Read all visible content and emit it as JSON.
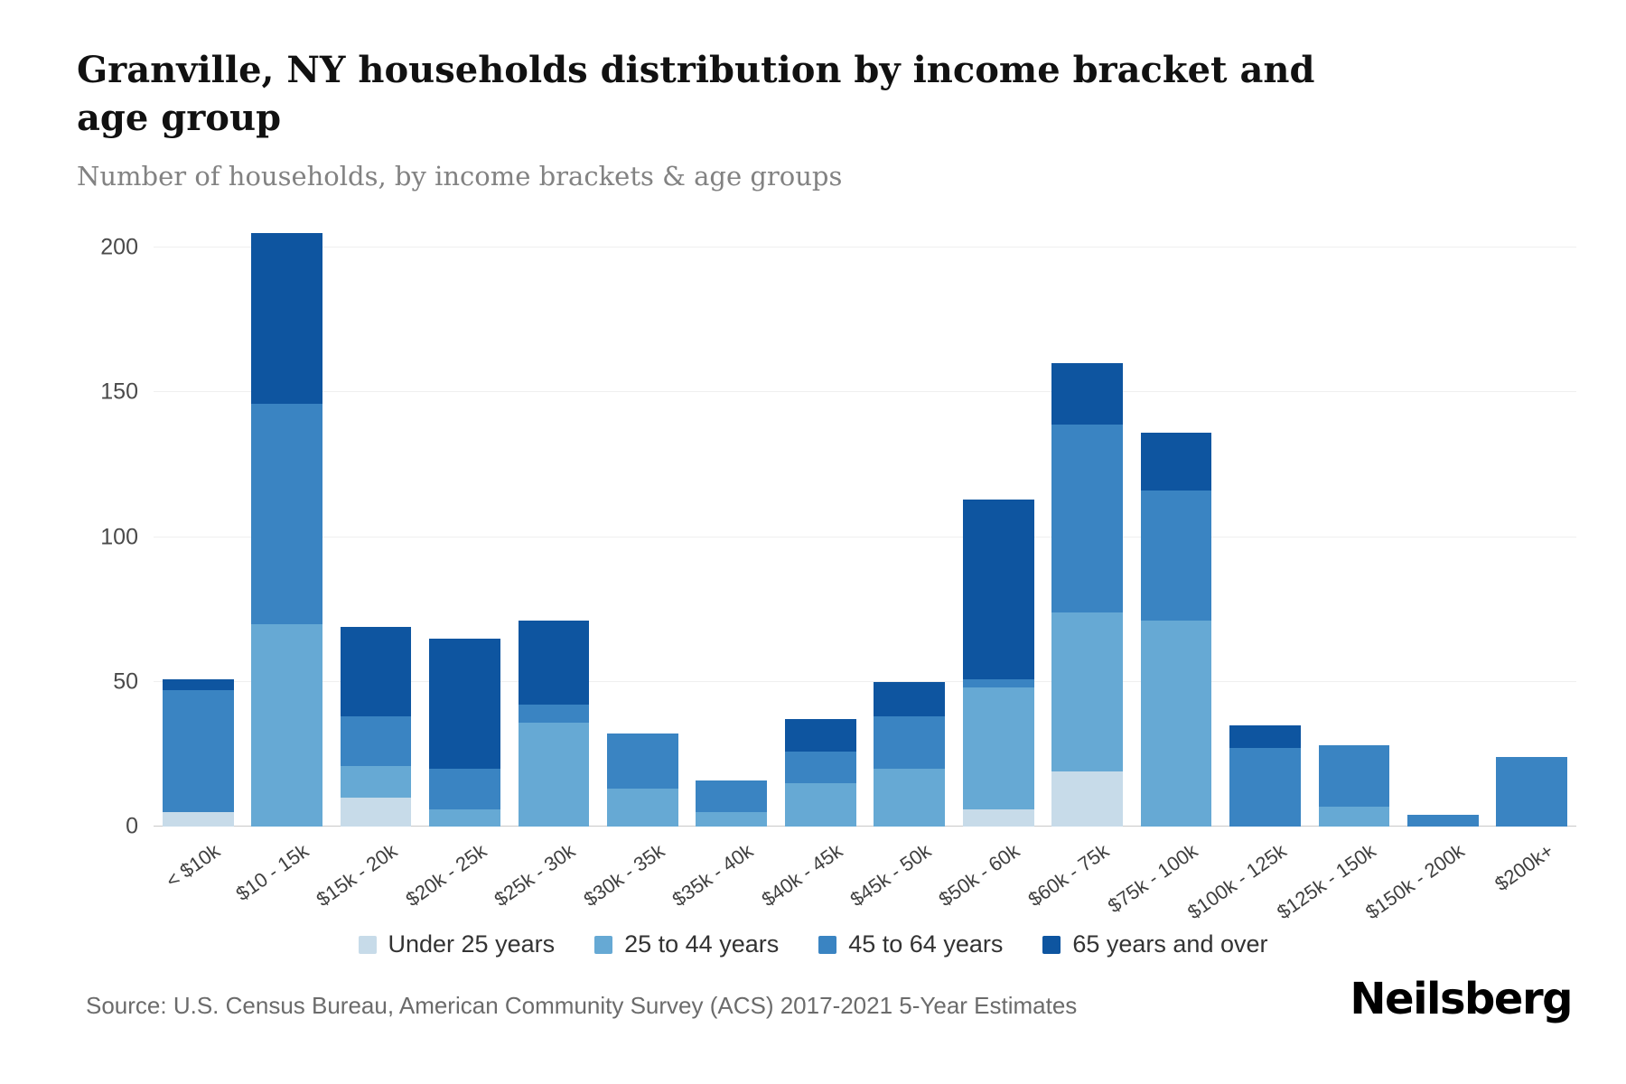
{
  "page": {
    "title": "Granville, NY households distribution by income bracket and age group",
    "subtitle": "Number of households, by income brackets & age groups",
    "source": "Source: U.S. Census Bureau, American Community Survey (ACS) 2017-2021 5-Year Estimates",
    "brand": "Neilsberg"
  },
  "colors": {
    "under_25": "#c7dbe9",
    "age_25_44": "#66a9d4",
    "age_45_64": "#3a84c2",
    "age_65_over": "#0e55a0",
    "gridline": "#efefef",
    "axis_line": "#c9c9c9",
    "subtitle_text": "#828282"
  },
  "chart_data": {
    "type": "bar",
    "stacked": true,
    "title": "Granville, NY households distribution by income bracket and age group",
    "subtitle": "Number of households, by income brackets & age groups",
    "xlabel": "",
    "ylabel": "",
    "ylim": [
      0,
      205
    ],
    "yticks": [
      0,
      50,
      100,
      150,
      200
    ],
    "grid": true,
    "legend_position": "bottom",
    "categories": [
      "< $10k",
      "$10 - 15k",
      "$15k - 20k",
      "$20k - 25k",
      "$25k - 30k",
      "$30k - 35k",
      "$35k - 40k",
      "$40k - 45k",
      "$45k - 50k",
      "$50k - 60k",
      "$60k - 75k",
      "$75k - 100k",
      "$100k - 125k",
      "$125k - 150k",
      "$150k - 200k",
      "$200k+"
    ],
    "series": [
      {
        "name": "Under 25 years",
        "color": "#c7dbe9",
        "values": [
          5,
          0,
          10,
          0,
          0,
          0,
          0,
          0,
          0,
          6,
          19,
          0,
          0,
          0,
          0,
          0
        ]
      },
      {
        "name": "25 to 44 years",
        "color": "#66a9d4",
        "values": [
          0,
          70,
          11,
          6,
          36,
          13,
          5,
          15,
          20,
          42,
          55,
          71,
          0,
          7,
          0,
          0
        ]
      },
      {
        "name": "45 to 64 years",
        "color": "#3a84c2",
        "values": [
          42,
          76,
          17,
          14,
          6,
          19,
          11,
          11,
          18,
          3,
          65,
          45,
          27,
          21,
          4,
          24
        ]
      },
      {
        "name": "65 years and over",
        "color": "#0e55a0",
        "values": [
          4,
          59,
          31,
          45,
          29,
          0,
          0,
          11,
          12,
          62,
          21,
          20,
          8,
          0,
          0,
          0
        ]
      }
    ],
    "totals": [
      51,
      205,
      69,
      65,
      71,
      32,
      16,
      37,
      50,
      113,
      160,
      136,
      35,
      28,
      4,
      24
    ]
  }
}
